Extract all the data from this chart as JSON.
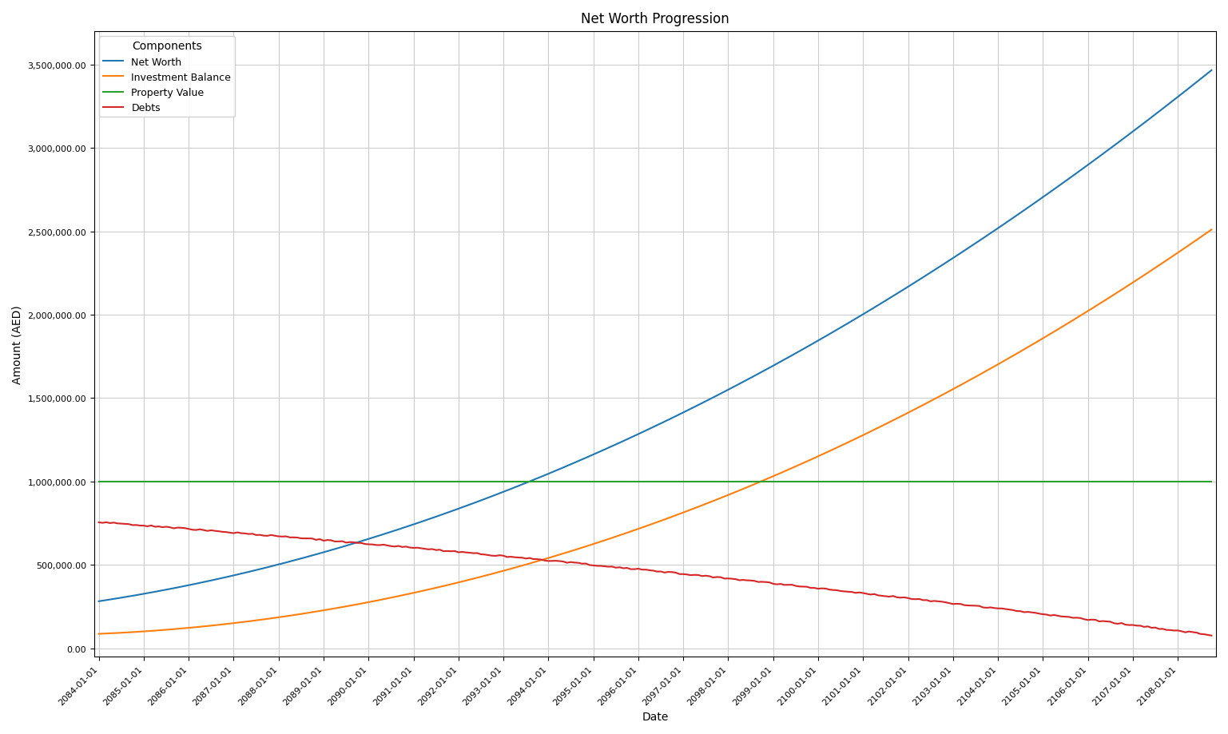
{
  "title": "Net Worth Progression",
  "xlabel": "Date",
  "ylabel": "Amount (AED)",
  "legend_title": "Components",
  "series": {
    "Net Worth": {
      "color": "#1f77b4",
      "label": "Net Worth",
      "points_years": [
        2084,
        2087,
        2090,
        2093,
        2096,
        2099,
        2101,
        2104,
        2106,
        2108.75
      ],
      "points_values": [
        250000,
        430000,
        680000,
        1050000,
        1280000,
        1580000,
        1980000,
        2480000,
        3000000,
        3450000
      ]
    },
    "Investment Balance": {
      "color": "#ff7f0e",
      "label": "Investment Balance",
      "points_years": [
        2084,
        2085,
        2086,
        2087,
        2088,
        2089,
        2090,
        2091,
        2092,
        2093,
        2095,
        2097,
        2099,
        2101,
        2103,
        2105,
        2107,
        2108.75
      ],
      "points_values": [
        75000,
        100000,
        130000,
        160000,
        195000,
        235000,
        270000,
        315000,
        370000,
        480000,
        660000,
        830000,
        1010000,
        1250000,
        1490000,
        1920000,
        2270000,
        2450000
      ]
    },
    "Property Value": {
      "color": "#2ca02c",
      "label": "Property Value",
      "value": 1000000
    },
    "Debts": {
      "color": "#d62728",
      "label": "Debts",
      "points_years": [
        2084,
        2085,
        2086,
        2087,
        2088,
        2089,
        2090,
        2091,
        2092,
        2093,
        2094,
        2096,
        2098,
        2100,
        2102,
        2104,
        2106,
        2107,
        2108.75
      ],
      "points_values": [
        800000,
        760000,
        720000,
        670000,
        645000,
        630000,
        615000,
        600000,
        570000,
        530000,
        500000,
        470000,
        440000,
        380000,
        340000,
        280000,
        190000,
        120000,
        30000
      ]
    }
  },
  "start_year": 2084.0,
  "end_year": 2108.75,
  "xtick_labels": [
    "2084-01-01",
    "2085-01-01",
    "2086-01-01",
    "2087-01-01",
    "2088-01-01",
    "2089-01-01",
    "2090-01-01",
    "2091-01-01",
    "2092-01-01",
    "2093-01-01",
    "2094-01-01",
    "2095-01-01",
    "2096-01-01",
    "2097-01-01",
    "2098-01-01",
    "2099-01-01",
    "2100-01-01",
    "2101-01-01",
    "2102-01-01",
    "2103-01-01",
    "2104-01-01",
    "2105-01-01",
    "2106-01-01",
    "2107-01-01",
    "2108-01-01"
  ],
  "xtick_years": [
    2084,
    2085,
    2086,
    2087,
    2088,
    2089,
    2090,
    2091,
    2092,
    2093,
    2094,
    2095,
    2096,
    2097,
    2098,
    2099,
    2100,
    2101,
    2102,
    2103,
    2104,
    2105,
    2106,
    2107,
    2108
  ],
  "ylim": [
    -50000,
    3700000
  ],
  "ytick_values": [
    0,
    500000,
    1000000,
    1500000,
    2000000,
    2500000,
    3000000,
    3500000
  ],
  "figsize": [
    15.37,
    9.2
  ],
  "dpi": 100,
  "background_color": "#ffffff",
  "grid_color": "#cccccc",
  "line_width": 1.5
}
